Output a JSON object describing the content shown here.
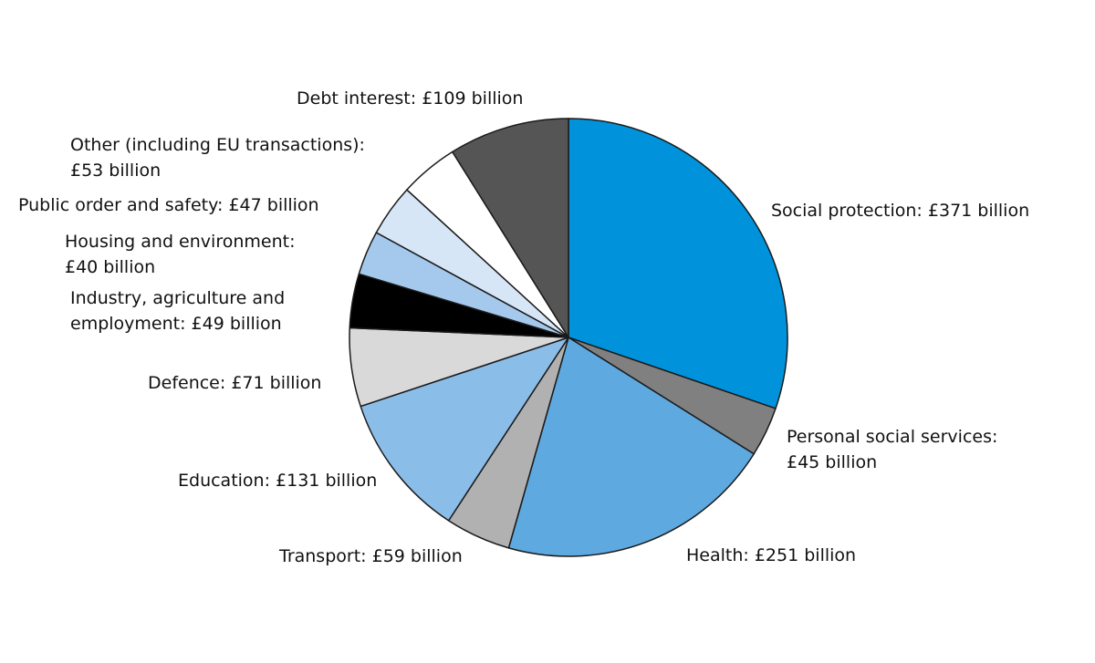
{
  "chart_data": {
    "type": "pie",
    "categories": [
      "Social protection:",
      "Personal social services:",
      "Health:",
      "Transport:",
      "Education:",
      "Defence:",
      "Industry, agriculture and employment:",
      "Housing and environment:",
      "Public order and safety:",
      "Other (including EU transactions):",
      "Debt interest:"
    ],
    "values": [
      371,
      45,
      251,
      59,
      131,
      71,
      49,
      40,
      47,
      53,
      109
    ],
    "value_labels": [
      "£371 billion",
      "£45 billion",
      "£251 billion",
      "£59 billion",
      "£131 billion",
      "£71 billion",
      "£49 billion",
      "£40 billion",
      "£47 billion",
      "£53 billion",
      "£109 billion"
    ],
    "colors": [
      "#0093dc",
      "#808080",
      "#5ea9df",
      "#b1b1b1",
      "#8bbde9",
      "#d9d9d9",
      "#000000",
      "#a5c9ec",
      "#d6e6f6",
      "#ffffff",
      "#555555"
    ]
  }
}
